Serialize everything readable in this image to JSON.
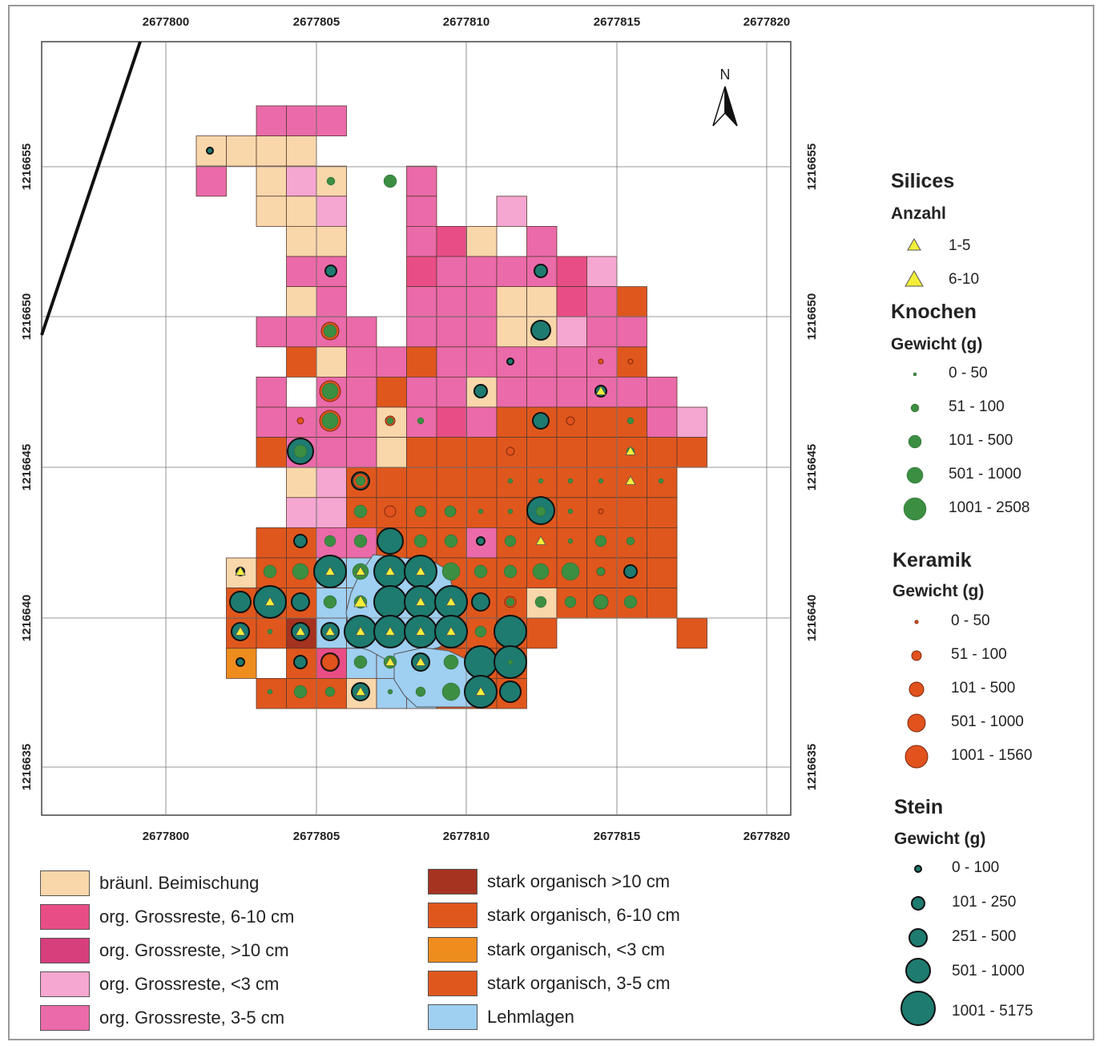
{
  "map": {
    "x_ticks": [
      "2677800",
      "2677805",
      "2677810",
      "2677815",
      "2677820"
    ],
    "y_ticks": [
      "1216655",
      "1216650",
      "1216645",
      "1216640",
      "1216635"
    ],
    "north_label": "N"
  },
  "colors": {
    "braeunl": "#f9d7ab",
    "org6_10": "#e94d86",
    "org_gt10": "#d63e7c",
    "org_lt3": "#f5a6d1",
    "org3_5": "#eb6aaa",
    "stark_gt10": "#a5331f",
    "stark6_10": "#e0571d",
    "stark_lt3": "#ee8c1e",
    "stark3_5": "#e0571d",
    "lehm": "#9fcff1",
    "knochen": "#3b8e42",
    "keramik": "#e1521d",
    "stein": "#1e7b70",
    "silices": "#f3ef3a"
  },
  "legend": {
    "silices": {
      "title": "Silices",
      "sub": "Anzahl",
      "items": [
        "1-5",
        "6-10"
      ]
    },
    "knochen": {
      "title": "Knochen",
      "sub": "Gewicht (g)",
      "items": [
        "0 - 50",
        "51 - 100",
        "101 - 500",
        "501 - 1000",
        "1001 - 2508"
      ]
    },
    "keramik": {
      "title": "Keramik",
      "sub": "Gewicht (g)",
      "items": [
        "0 - 50",
        "51 - 100",
        "101 - 500",
        "501 - 1000",
        "1001 - 1560"
      ]
    },
    "stein": {
      "title": "Stein",
      "sub": "Gewicht (g)",
      "items": [
        "0 - 100",
        "101 - 250",
        "251 - 500",
        "501 - 1000",
        "1001 - 5175"
      ]
    },
    "fills_left": [
      {
        "label": "bräunl. Beimischung",
        "color": "#f9d7ab"
      },
      {
        "label": "org. Grossreste, 6-10 cm",
        "color": "#e94d86"
      },
      {
        "label": "org. Grossreste, >10 cm",
        "color": "#d63e7c"
      },
      {
        "label": "org. Grossreste, <3 cm",
        "color": "#f5a6d1"
      },
      {
        "label": "org. Grossreste, 3-5 cm",
        "color": "#eb6aaa"
      }
    ],
    "fills_right": [
      {
        "label": "stark organisch >10 cm",
        "color": "#a5331f"
      },
      {
        "label": "stark organisch, 6-10 cm",
        "color": "#e0571d"
      },
      {
        "label": "stark organisch, <3 cm",
        "color": "#ee8c1e"
      },
      {
        "label": "stark organisch, 3-5 cm",
        "color": "#e0571d"
      },
      {
        "label": "Lehmlagen",
        "color": "#9fcff1"
      }
    ]
  }
}
